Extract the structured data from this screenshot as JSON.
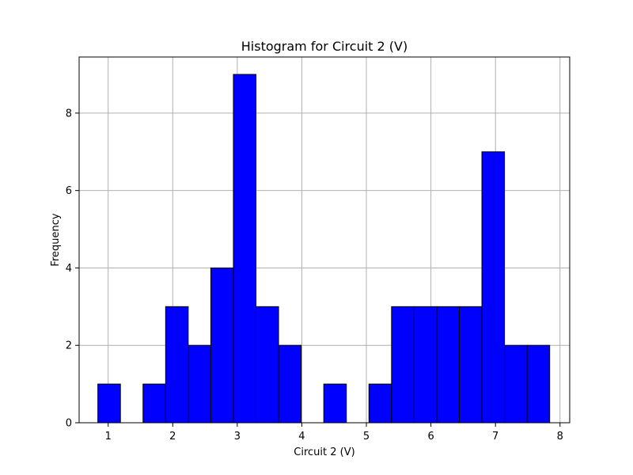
{
  "chart_data": {
    "type": "bar",
    "title": "Histogram for Circuit 2 (V)",
    "xlabel": "Circuit 2 (V)",
    "ylabel": "Frequency",
    "xlim": [
      0.55,
      8.15
    ],
    "ylim": [
      0,
      9.45
    ],
    "xticks": [
      1,
      2,
      3,
      4,
      5,
      6,
      7,
      8
    ],
    "yticks": [
      0,
      2,
      4,
      6,
      8
    ],
    "grid": true,
    "bar_color": "#0000ff",
    "edge_color": "#000000",
    "bins": [
      {
        "start": 0.84,
        "end": 1.19,
        "count": 1
      },
      {
        "start": 1.19,
        "end": 1.54,
        "count": 0
      },
      {
        "start": 1.54,
        "end": 1.89,
        "count": 1
      },
      {
        "start": 1.89,
        "end": 2.24,
        "count": 3
      },
      {
        "start": 2.24,
        "end": 2.59,
        "count": 2
      },
      {
        "start": 2.59,
        "end": 2.94,
        "count": 4
      },
      {
        "start": 2.94,
        "end": 3.29,
        "count": 9
      },
      {
        "start": 3.29,
        "end": 3.64,
        "count": 3
      },
      {
        "start": 3.64,
        "end": 3.99,
        "count": 2
      },
      {
        "start": 3.99,
        "end": 4.34,
        "count": 0
      },
      {
        "start": 4.34,
        "end": 4.69,
        "count": 1
      },
      {
        "start": 4.69,
        "end": 5.04,
        "count": 0
      },
      {
        "start": 5.04,
        "end": 5.39,
        "count": 1
      },
      {
        "start": 5.39,
        "end": 5.74,
        "count": 3
      },
      {
        "start": 5.74,
        "end": 6.09,
        "count": 3
      },
      {
        "start": 6.09,
        "end": 6.44,
        "count": 3
      },
      {
        "start": 6.44,
        "end": 6.79,
        "count": 3
      },
      {
        "start": 6.79,
        "end": 7.14,
        "count": 7
      },
      {
        "start": 7.14,
        "end": 7.49,
        "count": 2
      },
      {
        "start": 7.49,
        "end": 7.84,
        "count": 2
      }
    ]
  }
}
